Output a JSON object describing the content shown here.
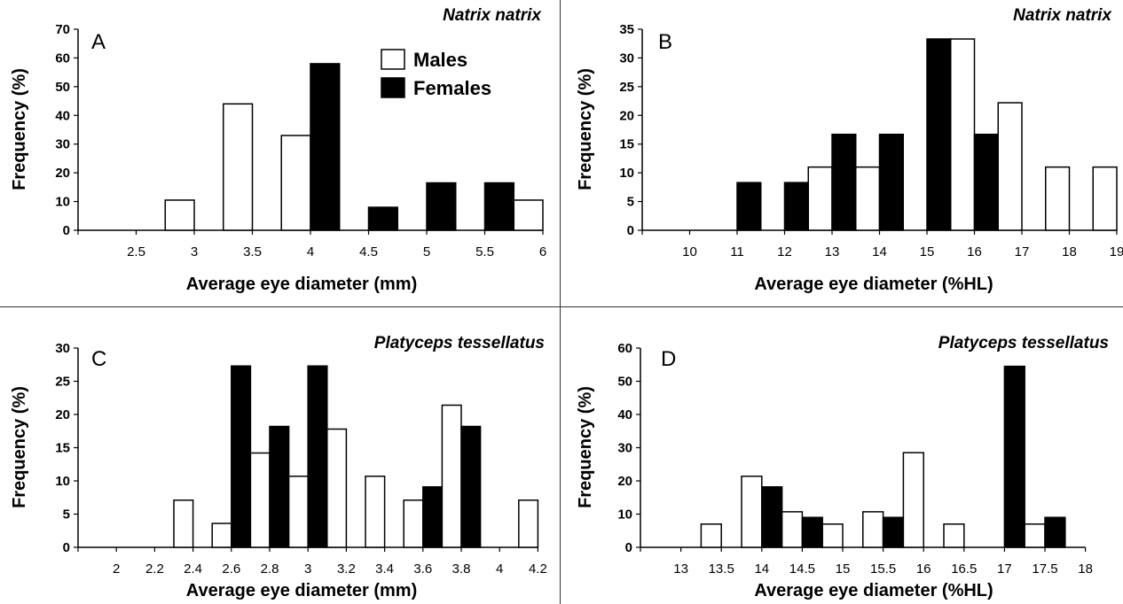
{
  "legend": {
    "items": [
      {
        "label": "Males",
        "fill": "#ffffff"
      },
      {
        "label": "Females",
        "fill": "#000000"
      }
    ]
  },
  "chart_data": [
    {
      "type": "bar",
      "panel": "A",
      "title": "Natrix natrix",
      "xlabel": "Average eye diameter (mm)",
      "ylabel": "Frequency (%)",
      "ylim": [
        0,
        70
      ],
      "yticks": [
        "0",
        "10",
        "20",
        "30",
        "40",
        "50",
        "60",
        "70"
      ],
      "xticks": [
        "2.5",
        "3",
        "3.5",
        "4",
        "4.5",
        "5",
        "5.5",
        "6"
      ],
      "legend_position": "top-right",
      "categories": [
        "3",
        "3.5",
        "4",
        "4.5",
        "5",
        "5.5",
        "6"
      ],
      "series": [
        {
          "name": "Males",
          "values": [
            10.5,
            44,
            33,
            0,
            0,
            0,
            10.5
          ]
        },
        {
          "name": "Females",
          "values": [
            0,
            0,
            58,
            8,
            16.5,
            16.5,
            0
          ]
        }
      ]
    },
    {
      "type": "bar",
      "panel": "B",
      "title": "Natrix natrix",
      "xlabel": "Average eye diameter (%HL)",
      "ylabel": "Frequency (%)",
      "ylim": [
        0,
        35
      ],
      "yticks": [
        "0",
        "5",
        "10",
        "15",
        "20",
        "25",
        "30",
        "35"
      ],
      "xticks": [
        "10",
        "11",
        "12",
        "13",
        "14",
        "15",
        "16",
        "17",
        "18",
        "19"
      ],
      "categories": [
        "11",
        "12",
        "13",
        "14",
        "15",
        "16",
        "17",
        "18",
        "19"
      ],
      "series": [
        {
          "name": "Males",
          "values": [
            0,
            0,
            11,
            11,
            0,
            33.3,
            22.2,
            11,
            11
          ]
        },
        {
          "name": "Females",
          "values": [
            8.3,
            8.3,
            16.7,
            16.7,
            33.3,
            16.7,
            0,
            0,
            0
          ]
        }
      ]
    },
    {
      "type": "bar",
      "panel": "C",
      "title": "Platyceps tessellatus",
      "xlabel": "Average eye diameter (mm)",
      "ylabel": "Frequency (%)",
      "ylim": [
        0,
        30
      ],
      "yticks": [
        "0",
        "5",
        "10",
        "15",
        "20",
        "25",
        "30"
      ],
      "xticks": [
        "2",
        "2.2",
        "2.4",
        "2.6",
        "2.8",
        "3",
        "3.2",
        "3.4",
        "3.6",
        "3.8",
        "4",
        "4.2"
      ],
      "categories": [
        "2.4",
        "2.6",
        "2.8",
        "3",
        "3.2",
        "3.4",
        "3.6",
        "3.8",
        "4.2"
      ],
      "series": [
        {
          "name": "Males",
          "values": [
            7.1,
            3.6,
            14.2,
            10.7,
            17.8,
            10.7,
            7.1,
            21.4,
            7.1
          ]
        },
        {
          "name": "Females",
          "values": [
            0,
            27.3,
            18.2,
            27.3,
            0,
            0,
            9.1,
            18.2,
            0
          ]
        }
      ]
    },
    {
      "type": "bar",
      "panel": "D",
      "title": "Platyceps tessellatus",
      "xlabel": "Average eye diameter (%HL)",
      "ylabel": "Frequency (%)",
      "ylim": [
        0,
        60
      ],
      "yticks": [
        "0",
        "10",
        "20",
        "30",
        "40",
        "50",
        "60"
      ],
      "xticks": [
        "13",
        "13.5",
        "14",
        "14.5",
        "15",
        "15.5",
        "16",
        "16.5",
        "17",
        "17.5",
        "18"
      ],
      "categories": [
        "13.5",
        "14",
        "14.5",
        "15",
        "15.5",
        "16",
        "16.5",
        "17",
        "17.5"
      ],
      "series": [
        {
          "name": "Males",
          "values": [
            7,
            21.4,
            10.7,
            7,
            10.7,
            28.5,
            7,
            0,
            7
          ]
        },
        {
          "name": "Females",
          "values": [
            0,
            18.2,
            9,
            0,
            9,
            0,
            0,
            54.5,
            9
          ]
        }
      ]
    }
  ]
}
